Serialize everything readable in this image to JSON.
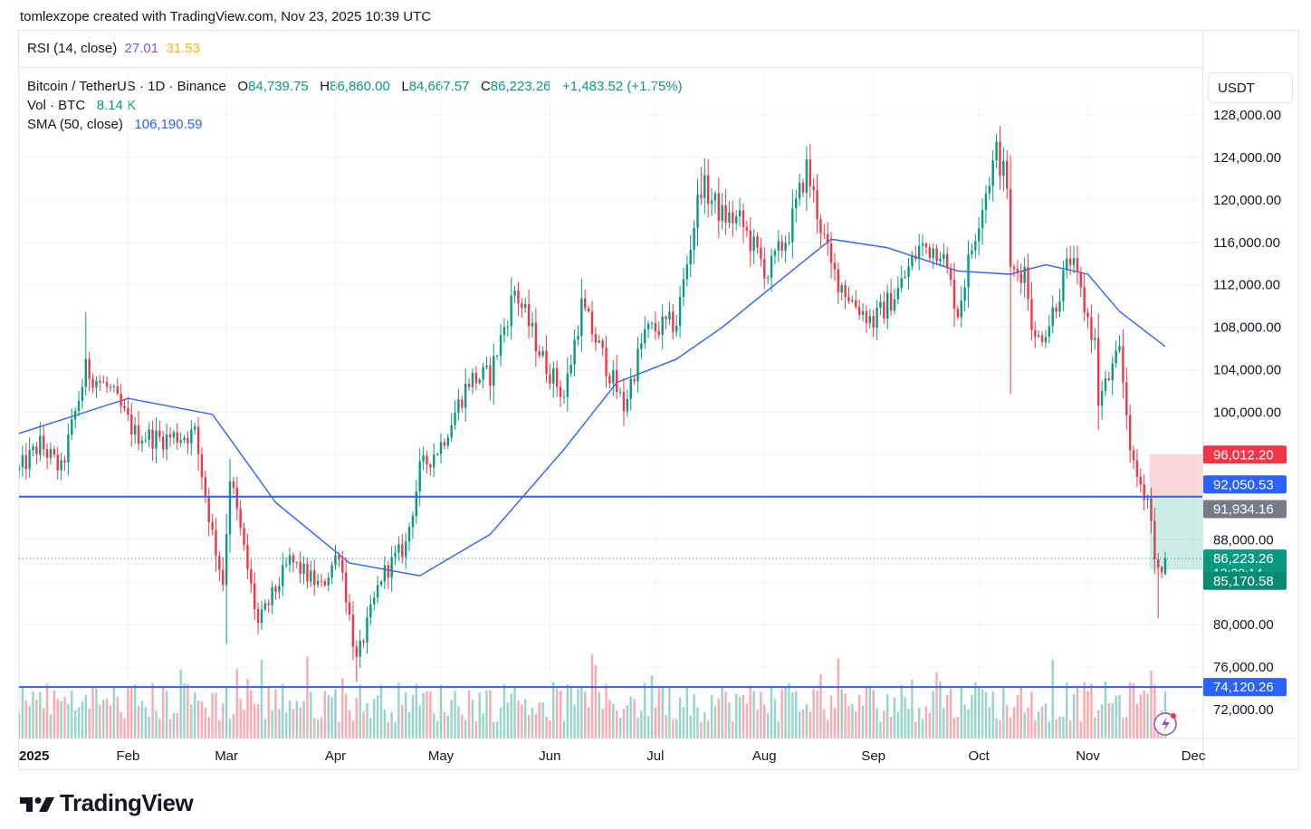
{
  "caption": "tomlexzope created with TradingView.com, Nov 23, 2025 10:39 UTC",
  "brand": "TradingView",
  "rsi": {
    "label": "RSI (14, close)",
    "value1": "27.01",
    "value2": "31.53"
  },
  "legend": {
    "symbol": "Bitcoin / TetherUS · 1D · Binance",
    "o_label": "O",
    "o_value": "84,739.75",
    "h_label": "H",
    "h_value": "86,860.00",
    "l_label": "L",
    "l_value": "84,667.57",
    "c_label": "C",
    "c_value": "86,223.26",
    "change": "+1,483.52 (+1.75%)",
    "vol_label": "Vol · BTC",
    "vol_value": "8.14 K",
    "sma_label": "SMA (50, close)",
    "sma_value": "106,190.59"
  },
  "currency": "USDT",
  "colors": {
    "up": "#089981",
    "down": "#f23645",
    "sma": "#2962ff",
    "hline": "#2962ff"
  },
  "chart_data": {
    "type": "candlestick",
    "symbol": "BTCUSDT",
    "timeframe": "1D",
    "x_range": [
      "2025-01-01",
      "2025-11-23"
    ],
    "ylim": [
      69000,
      131500
    ],
    "x_ticks": [
      "2025",
      "Feb",
      "Mar",
      "Apr",
      "May",
      "Jun",
      "Jul",
      "Aug",
      "Sep",
      "Oct",
      "Nov",
      "Dec"
    ],
    "y_ticks": [
      "128,000.00",
      "124,000.00",
      "120,000.00",
      "116,000.00",
      "112,000.00",
      "108,000.00",
      "104,000.00",
      "100,000.00",
      "88,000.00",
      "80,000.00",
      "76,000.00",
      "72,000.00"
    ],
    "close_path": [
      [
        "2025-01-01",
        94500
      ],
      [
        "2025-01-07",
        97000
      ],
      [
        "2025-01-13",
        94500
      ],
      [
        "2025-01-20",
        104000
      ],
      [
        "2025-01-27",
        102000
      ],
      [
        "2025-02-03",
        98000
      ],
      [
        "2025-02-10",
        97500
      ],
      [
        "2025-02-20",
        98000
      ],
      [
        "2025-02-25",
        88500
      ],
      [
        "2025-02-28",
        84000
      ],
      [
        "2025-03-02",
        94000
      ],
      [
        "2025-03-10",
        80000
      ],
      [
        "2025-03-19",
        86000
      ],
      [
        "2025-03-28",
        83500
      ],
      [
        "2025-04-02",
        87000
      ],
      [
        "2025-04-07",
        76500
      ],
      [
        "2025-04-14",
        84500
      ],
      [
        "2025-04-21",
        87500
      ],
      [
        "2025-04-25",
        94500
      ],
      [
        "2025-05-01",
        97000
      ],
      [
        "2025-05-09",
        103000
      ],
      [
        "2025-05-15",
        103500
      ],
      [
        "2025-05-22",
        111500
      ],
      [
        "2025-05-30",
        105000
      ],
      [
        "2025-06-05",
        101500
      ],
      [
        "2025-06-10",
        110000
      ],
      [
        "2025-06-17",
        104500
      ],
      [
        "2025-06-22",
        100500
      ],
      [
        "2025-06-28",
        107500
      ],
      [
        "2025-07-07",
        108500
      ],
      [
        "2025-07-14",
        121500
      ],
      [
        "2025-07-20",
        118500
      ],
      [
        "2025-07-25",
        118000
      ],
      [
        "2025-08-02",
        113000
      ],
      [
        "2025-08-08",
        117000
      ],
      [
        "2025-08-13",
        123000
      ],
      [
        "2025-08-20",
        113500
      ],
      [
        "2025-08-26",
        110500
      ],
      [
        "2025-09-01",
        108500
      ],
      [
        "2025-09-08",
        111500
      ],
      [
        "2025-09-14",
        115500
      ],
      [
        "2025-09-20",
        115500
      ],
      [
        "2025-09-25",
        109500
      ],
      [
        "2025-10-01",
        118500
      ],
      [
        "2025-10-06",
        124500
      ],
      [
        "2025-10-09",
        121500
      ],
      [
        "2025-10-10",
        113000
      ],
      [
        "2025-10-14",
        113500
      ],
      [
        "2025-10-17",
        106500
      ],
      [
        "2025-10-21",
        108500
      ],
      [
        "2025-10-27",
        114500
      ],
      [
        "2025-11-03",
        106500
      ],
      [
        "2025-11-04",
        101000
      ],
      [
        "2025-11-10",
        105500
      ],
      [
        "2025-11-14",
        94500
      ],
      [
        "2025-11-18",
        92000
      ],
      [
        "2025-11-20",
        87000
      ],
      [
        "2025-11-21",
        84800
      ],
      [
        "2025-11-22",
        84740
      ],
      [
        "2025-11-23",
        86223
      ]
    ],
    "sma50_path": [
      [
        "2025-01-01",
        98000
      ],
      [
        "2025-02-01",
        101300
      ],
      [
        "2025-02-25",
        99800
      ],
      [
        "2025-03-15",
        91500
      ],
      [
        "2025-04-05",
        85800
      ],
      [
        "2025-04-25",
        84600
      ],
      [
        "2025-05-15",
        88500
      ],
      [
        "2025-06-05",
        96500
      ],
      [
        "2025-06-20",
        102800
      ],
      [
        "2025-07-07",
        105000
      ],
      [
        "2025-07-20",
        108000
      ],
      [
        "2025-08-05",
        112300
      ],
      [
        "2025-08-20",
        116300
      ],
      [
        "2025-09-05",
        115500
      ],
      [
        "2025-09-25",
        113300
      ],
      [
        "2025-10-10",
        113000
      ],
      [
        "2025-10-20",
        113900
      ],
      [
        "2025-11-01",
        113000
      ],
      [
        "2025-11-10",
        109500
      ],
      [
        "2025-11-23",
        106190
      ]
    ],
    "hlines": [
      92050.53,
      74120.26
    ],
    "last_price_line": 86223.26,
    "position_tool": {
      "entry": 91934.16,
      "stop": 96012.2,
      "target": 85170.58,
      "start": "2025-11-18",
      "end": "2025-11-30"
    },
    "volume": {
      "label": "Vol · BTC",
      "last_value": "8.14 K"
    },
    "price_labels": {
      "stop": "96,012.20",
      "hline_upper": "92,050.53",
      "entry": "91,934.16",
      "last": "86,223.26",
      "countdown": "13:20:14",
      "target": "85,170.58",
      "hline_lower": "74,120.26"
    }
  }
}
